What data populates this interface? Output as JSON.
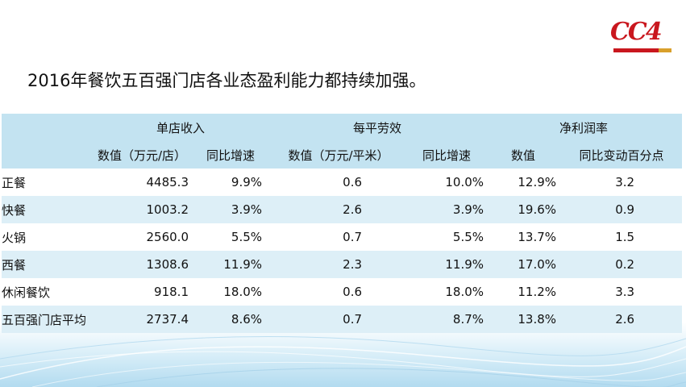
{
  "logo": {
    "text": "CC4"
  },
  "title": "2016年餐饮五百强门店各业态盈利能力都持续加强。",
  "table": {
    "group_headers": [
      "单店收入",
      "每平劳效",
      "净利润率"
    ],
    "sub_headers": [
      "数值（万元/店）",
      "同比增速",
      "数值（万元/平米）",
      "同比增速",
      "数值",
      "同比变动百分点"
    ],
    "rows": [
      {
        "label": "正餐",
        "values": [
          "4485.3",
          "9.9%",
          "0.6",
          "10.0%",
          "12.9%",
          "3.2"
        ]
      },
      {
        "label": "快餐",
        "values": [
          "1003.2",
          "3.9%",
          "2.6",
          "3.9%",
          "19.6%",
          "0.9"
        ]
      },
      {
        "label": "火锅",
        "values": [
          "2560.0",
          "5.5%",
          "0.7",
          "5.5%",
          "13.7%",
          "1.5"
        ]
      },
      {
        "label": "西餐",
        "values": [
          "1308.6",
          "11.9%",
          "2.3",
          "11.9%",
          "17.0%",
          "0.2"
        ]
      },
      {
        "label": "休闲餐饮",
        "values": [
          "918.1",
          "18.0%",
          "0.6",
          "18.0%",
          "11.2%",
          "3.3"
        ]
      },
      {
        "label": "五百强门店平均",
        "values": [
          "2737.4",
          "8.6%",
          "0.7",
          "8.7%",
          "13.8%",
          "2.6"
        ]
      }
    ]
  },
  "colors": {
    "header_bg": "#c3e3f1",
    "stripe_bg": "#ddeff7",
    "logo_red": "#c9171e",
    "logo_gold": "#d9a02b"
  }
}
